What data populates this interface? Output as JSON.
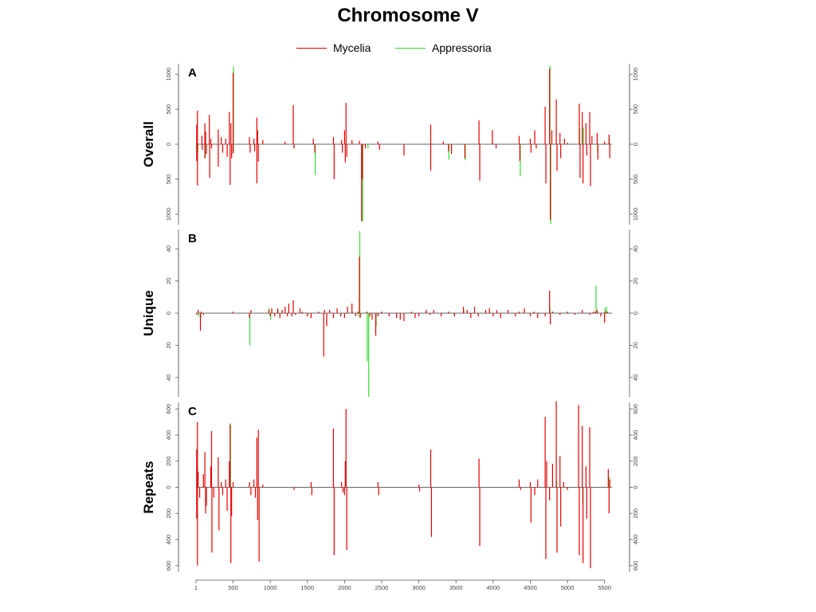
{
  "title": "Chromosome V",
  "legend": [
    {
      "name": "Mycelia",
      "color": "#e60000"
    },
    {
      "name": "Appressoria",
      "color": "#33dd33"
    }
  ],
  "chart_data": {
    "type": "bar",
    "title": "Chromosome V",
    "x_ticks": [
      1,
      500,
      1000,
      1500,
      2000,
      2500,
      3000,
      3500,
      4000,
      4500,
      5000,
      5500
    ],
    "xlim": [
      1,
      5600
    ],
    "series_colors": {
      "Mycelia": "#e60000",
      "Appressoria": "#33dd33"
    },
    "note_sign": "values above the baseline are positive, values below are negative",
    "panels": [
      {
        "label": "A",
        "ylabel": "Overall",
        "ylim": [
          -1150,
          1150
        ],
        "yticks": [
          1000,
          500,
          0,
          -500,
          -1000
        ],
        "ytick_labels": [
          "1000",
          "500",
          "0",
          "500",
          "1000"
        ],
        "mycelia": [
          [
            10,
            280
          ],
          [
            10,
            -240
          ],
          [
            20,
            480
          ],
          [
            20,
            -590
          ],
          [
            80,
            120
          ],
          [
            85,
            -80
          ],
          [
            120,
            300
          ],
          [
            120,
            -200
          ],
          [
            130,
            180
          ],
          [
            140,
            -140
          ],
          [
            180,
            420
          ],
          [
            185,
            -480
          ],
          [
            200,
            80
          ],
          [
            210,
            -60
          ],
          [
            300,
            210
          ],
          [
            300,
            -320
          ],
          [
            340,
            100
          ],
          [
            360,
            -120
          ],
          [
            400,
            80
          ],
          [
            420,
            -180
          ],
          [
            450,
            460
          ],
          [
            460,
            -580
          ],
          [
            470,
            300
          ],
          [
            480,
            -200
          ],
          [
            500,
            1020
          ],
          [
            500,
            -130
          ],
          [
            720,
            100
          ],
          [
            730,
            -120
          ],
          [
            780,
            80
          ],
          [
            790,
            -100
          ],
          [
            820,
            380
          ],
          [
            820,
            -560
          ],
          [
            830,
            200
          ],
          [
            840,
            -250
          ],
          [
            900,
            60
          ],
          [
            1200,
            40
          ],
          [
            1310,
            560
          ],
          [
            1320,
            -60
          ],
          [
            1580,
            80
          ],
          [
            1600,
            -120
          ],
          [
            1850,
            100
          ],
          [
            1860,
            -500
          ],
          [
            1960,
            60
          ],
          [
            1970,
            -120
          ],
          [
            2000,
            200
          ],
          [
            2010,
            -260
          ],
          [
            2020,
            590
          ],
          [
            2030,
            -180
          ],
          [
            2100,
            60
          ],
          [
            2200,
            50
          ],
          [
            2230,
            -1100
          ],
          [
            2240,
            -500
          ],
          [
            2280,
            -60
          ],
          [
            2450,
            40
          ],
          [
            2470,
            -80
          ],
          [
            2800,
            -160
          ],
          [
            3160,
            280
          ],
          [
            3160,
            -380
          ],
          [
            3330,
            40
          ],
          [
            3400,
            -100
          ],
          [
            3440,
            -140
          ],
          [
            3620,
            -200
          ],
          [
            3810,
            340
          ],
          [
            3820,
            -520
          ],
          [
            3990,
            200
          ],
          [
            4040,
            -60
          ],
          [
            4350,
            120
          ],
          [
            4360,
            -240
          ],
          [
            4500,
            80
          ],
          [
            4510,
            -120
          ],
          [
            4560,
            200
          ],
          [
            4580,
            -60
          ],
          [
            4700,
            540
          ],
          [
            4710,
            -560
          ],
          [
            4760,
            1080
          ],
          [
            4770,
            -1080
          ],
          [
            4790,
            200
          ],
          [
            4850,
            640
          ],
          [
            4860,
            -380
          ],
          [
            4900,
            160
          ],
          [
            4910,
            -200
          ],
          [
            4960,
            80
          ],
          [
            5000,
            20
          ],
          [
            5160,
            580
          ],
          [
            5170,
            -480
          ],
          [
            5200,
            460
          ],
          [
            5210,
            -560
          ],
          [
            5250,
            300
          ],
          [
            5260,
            -160
          ],
          [
            5300,
            460
          ],
          [
            5310,
            -600
          ],
          [
            5330,
            120
          ],
          [
            5400,
            160
          ],
          [
            5410,
            -220
          ],
          [
            5500,
            40
          ],
          [
            5560,
            140
          ],
          [
            5570,
            -200
          ]
        ],
        "appressoria": [
          [
            20,
            -120
          ],
          [
            120,
            -200
          ],
          [
            500,
            1110
          ],
          [
            500,
            -100
          ],
          [
            820,
            200
          ],
          [
            1600,
            -440
          ],
          [
            2240,
            -1100
          ],
          [
            2310,
            -60
          ],
          [
            3400,
            -220
          ],
          [
            3620,
            -230
          ],
          [
            4360,
            -460
          ],
          [
            4760,
            1120
          ],
          [
            4770,
            -1140
          ],
          [
            5160,
            220
          ],
          [
            5210,
            240
          ],
          [
            5400,
            -120
          ],
          [
            5560,
            80
          ]
        ]
      },
      {
        "label": "B",
        "ylabel": "Unique",
        "ylim": [
          -52,
          52
        ],
        "yticks": [
          40,
          20,
          0,
          -20,
          -40
        ],
        "ytick_labels": [
          "40",
          "20",
          "0",
          "20",
          "40"
        ],
        "mycelia": [
          [
            10,
            -1
          ],
          [
            30,
            2
          ],
          [
            60,
            -11
          ],
          [
            70,
            1
          ],
          [
            100,
            -1
          ],
          [
            500,
            1
          ],
          [
            720,
            -3
          ],
          [
            740,
            2
          ],
          [
            980,
            2
          ],
          [
            1000,
            -2
          ],
          [
            1020,
            3
          ],
          [
            1060,
            -2
          ],
          [
            1100,
            3
          ],
          [
            1130,
            -3
          ],
          [
            1160,
            2
          ],
          [
            1200,
            4
          ],
          [
            1230,
            -2
          ],
          [
            1250,
            6
          ],
          [
            1290,
            -2
          ],
          [
            1310,
            8
          ],
          [
            1340,
            -1
          ],
          [
            1400,
            3
          ],
          [
            1430,
            1
          ],
          [
            1500,
            -2
          ],
          [
            1550,
            -3
          ],
          [
            1650,
            1
          ],
          [
            1720,
            -27
          ],
          [
            1730,
            2
          ],
          [
            1760,
            -8
          ],
          [
            1800,
            2
          ],
          [
            1850,
            -3
          ],
          [
            1900,
            3
          ],
          [
            1950,
            -2
          ],
          [
            2000,
            -3
          ],
          [
            2040,
            4
          ],
          [
            2100,
            6
          ],
          [
            2150,
            -2
          ],
          [
            2180,
            1
          ],
          [
            2200,
            35
          ],
          [
            2210,
            -3
          ],
          [
            2300,
            1
          ],
          [
            2340,
            -2
          ],
          [
            2370,
            -4
          ],
          [
            2420,
            -14
          ],
          [
            2450,
            -2
          ],
          [
            2500,
            1
          ],
          [
            2600,
            -2
          ],
          [
            2700,
            -3
          ],
          [
            2750,
            -4
          ],
          [
            2800,
            -5
          ],
          [
            2900,
            1
          ],
          [
            2950,
            -3
          ],
          [
            3000,
            -2
          ],
          [
            3100,
            2
          ],
          [
            3150,
            -1
          ],
          [
            3200,
            2
          ],
          [
            3300,
            -2
          ],
          [
            3400,
            1
          ],
          [
            3480,
            -2
          ],
          [
            3600,
            4
          ],
          [
            3650,
            2
          ],
          [
            3700,
            -3
          ],
          [
            3750,
            4
          ],
          [
            3800,
            -2
          ],
          [
            3900,
            2
          ],
          [
            3950,
            3
          ],
          [
            4000,
            -2
          ],
          [
            4050,
            2
          ],
          [
            4100,
            -3
          ],
          [
            4200,
            2
          ],
          [
            4300,
            -2
          ],
          [
            4350,
            1
          ],
          [
            4420,
            3
          ],
          [
            4500,
            -2
          ],
          [
            4550,
            1
          ],
          [
            4600,
            -3
          ],
          [
            4700,
            -2
          ],
          [
            4760,
            14
          ],
          [
            4770,
            -7
          ],
          [
            4800,
            1
          ],
          [
            4900,
            -1
          ],
          [
            5000,
            1
          ],
          [
            5100,
            -1
          ],
          [
            5200,
            2
          ],
          [
            5300,
            -1
          ],
          [
            5350,
            1
          ],
          [
            5380,
            1
          ],
          [
            5400,
            2
          ],
          [
            5450,
            -2
          ],
          [
            5500,
            -6
          ],
          [
            5510,
            1
          ],
          [
            5540,
            1
          ]
        ],
        "appressoria": [
          [
            30,
            -2
          ],
          [
            60,
            -3
          ],
          [
            720,
            -20
          ],
          [
            980,
            3
          ],
          [
            1000,
            -4
          ],
          [
            1100,
            2
          ],
          [
            2100,
            1
          ],
          [
            2180,
            -2
          ],
          [
            2200,
            51
          ],
          [
            2210,
            -2
          ],
          [
            2300,
            -30
          ],
          [
            2320,
            -52
          ],
          [
            2420,
            -8
          ],
          [
            3600,
            2
          ],
          [
            4760,
            4
          ],
          [
            5380,
            17
          ],
          [
            5500,
            3
          ],
          [
            5520,
            4
          ]
        ]
      },
      {
        "label": "C",
        "ylabel": "Repeats",
        "ylim": [
          -650,
          650
        ],
        "yticks": [
          600,
          400,
          200,
          0,
          -200,
          -400,
          -600
        ],
        "ytick_labels": [
          "600",
          "400",
          "200",
          "0",
          "200",
          "400",
          "600"
        ],
        "mycelia": [
          [
            10,
            290
          ],
          [
            10,
            -240
          ],
          [
            20,
            500
          ],
          [
            20,
            -600
          ],
          [
            30,
            120
          ],
          [
            50,
            -80
          ],
          [
            100,
            100
          ],
          [
            120,
            270
          ],
          [
            130,
            -200
          ],
          [
            140,
            -140
          ],
          [
            200,
            160
          ],
          [
            210,
            430
          ],
          [
            215,
            -500
          ],
          [
            240,
            -80
          ],
          [
            300,
            230
          ],
          [
            310,
            -330
          ],
          [
            340,
            40
          ],
          [
            360,
            -60
          ],
          [
            400,
            60
          ],
          [
            420,
            -180
          ],
          [
            450,
            200
          ],
          [
            460,
            480
          ],
          [
            470,
            -580
          ],
          [
            480,
            -220
          ],
          [
            500,
            40
          ],
          [
            720,
            40
          ],
          [
            740,
            -60
          ],
          [
            780,
            60
          ],
          [
            800,
            -80
          ],
          [
            820,
            380
          ],
          [
            830,
            -250
          ],
          [
            840,
            440
          ],
          [
            850,
            -570
          ],
          [
            900,
            20
          ],
          [
            1320,
            -20
          ],
          [
            1550,
            40
          ],
          [
            1560,
            -60
          ],
          [
            1850,
            450
          ],
          [
            1860,
            -520
          ],
          [
            1960,
            40
          ],
          [
            1980,
            -40
          ],
          [
            2000,
            -60
          ],
          [
            2010,
            200
          ],
          [
            2020,
            600
          ],
          [
            2030,
            -480
          ],
          [
            2450,
            40
          ],
          [
            2460,
            -60
          ],
          [
            3000,
            20
          ],
          [
            3010,
            -30
          ],
          [
            3160,
            290
          ],
          [
            3170,
            -380
          ],
          [
            3810,
            220
          ],
          [
            3820,
            -450
          ],
          [
            4350,
            60
          ],
          [
            4370,
            -20
          ],
          [
            4500,
            40
          ],
          [
            4510,
            -270
          ],
          [
            4560,
            -60
          ],
          [
            4600,
            60
          ],
          [
            4700,
            540
          ],
          [
            4710,
            -550
          ],
          [
            4720,
            200
          ],
          [
            4760,
            -100
          ],
          [
            4800,
            180
          ],
          [
            4850,
            660
          ],
          [
            4860,
            -500
          ],
          [
            4900,
            240
          ],
          [
            4910,
            -300
          ],
          [
            4950,
            40
          ],
          [
            5000,
            -20
          ],
          [
            5150,
            630
          ],
          [
            5160,
            -520
          ],
          [
            5200,
            470
          ],
          [
            5210,
            -580
          ],
          [
            5250,
            160
          ],
          [
            5260,
            -240
          ],
          [
            5300,
            460
          ],
          [
            5310,
            -620
          ],
          [
            5550,
            140
          ],
          [
            5560,
            -200
          ],
          [
            5570,
            60
          ]
        ],
        "appressoria": [
          [
            460,
            490
          ],
          [
            4850,
            50
          ],
          [
            5200,
            -120
          ],
          [
            5560,
            80
          ]
        ]
      }
    ]
  }
}
